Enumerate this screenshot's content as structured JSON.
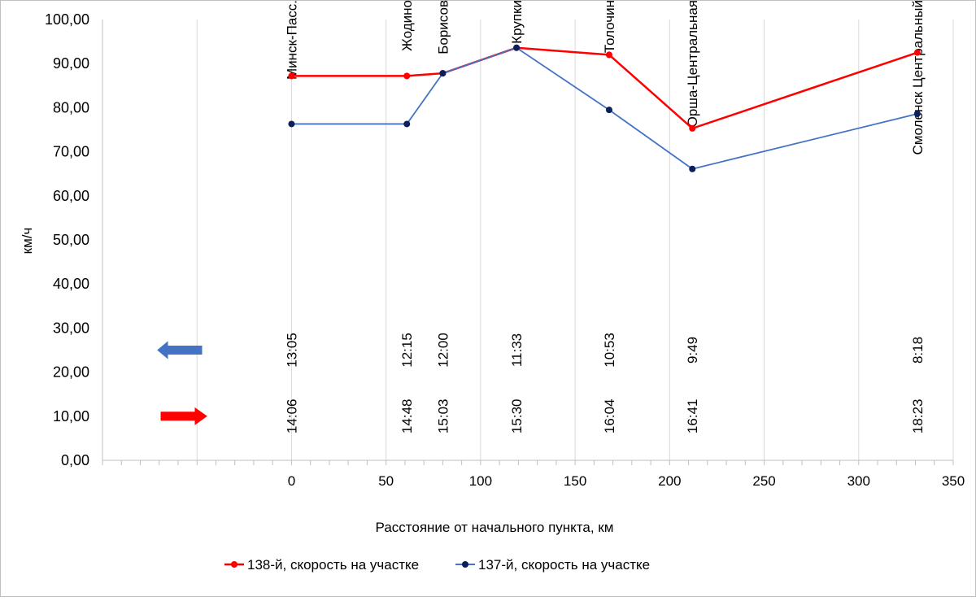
{
  "chart_data": {
    "type": "line",
    "xlabel": "Расстояние от начального пункта, км",
    "ylabel": "км/ч",
    "xlim": [
      -100,
      350
    ],
    "ylim": [
      0,
      100
    ],
    "x_ticks": [
      "0",
      "50",
      "100",
      "150",
      "200",
      "250",
      "300",
      "350"
    ],
    "y_ticks": [
      "0,00",
      "10,00",
      "20,00",
      "30,00",
      "40,00",
      "50,00",
      "60,00",
      "70,00",
      "80,00",
      "90,00",
      "100,00"
    ],
    "grid": "vertical",
    "legend_position": "bottom",
    "series": [
      {
        "name": "138-й, скорость на участке",
        "color": "#ff0000",
        "marker_color": "#ff0000",
        "x": [
          0,
          61,
          80,
          119,
          168,
          212,
          331
        ],
        "y": [
          87.2,
          87.2,
          87.8,
          93.6,
          92.0,
          75.3,
          92.5
        ]
      },
      {
        "name": "137-й, скорость на участке",
        "color": "#4472c4",
        "marker_color": "#0a1f5c",
        "x": [
          0,
          61,
          80,
          119,
          168,
          212,
          331
        ],
        "y": [
          76.3,
          76.3,
          87.8,
          93.6,
          79.5,
          66.1,
          78.6
        ]
      }
    ],
    "stations": [
      {
        "x": 0,
        "name": "Минск-Пасс.",
        "time_137": "13:05",
        "time_138": "14:06"
      },
      {
        "x": 61,
        "name": "Жодино",
        "time_137": "12:15",
        "time_138": "14:48"
      },
      {
        "x": 80,
        "name": "Борисов",
        "time_137": "12:00",
        "time_138": "15:03"
      },
      {
        "x": 119,
        "name": "Крупки",
        "time_137": "11:33",
        "time_138": "15:30"
      },
      {
        "x": 168,
        "name": "Толочин",
        "time_137": "10:53",
        "time_138": "16:04"
      },
      {
        "x": 212,
        "name": "Орша-Центральная",
        "time_137": "9:49",
        "time_138": "16:41"
      },
      {
        "x": 331,
        "name": "Смоленск Центральный",
        "time_137": "8:18",
        "time_138": "18:23"
      }
    ],
    "direction_arrows": [
      {
        "direction": "left",
        "color": "#4472c4",
        "y": 25
      },
      {
        "direction": "right",
        "color": "#ff0000",
        "y": 10
      }
    ]
  }
}
